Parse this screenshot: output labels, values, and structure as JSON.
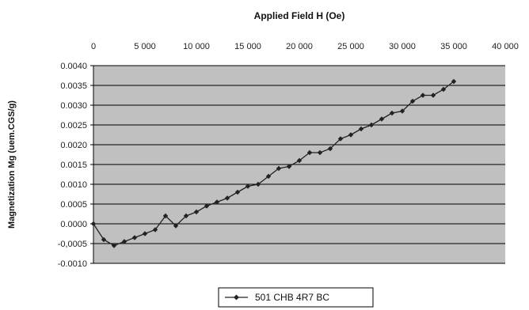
{
  "chart_data": {
    "type": "line",
    "xlabel": "Applied Field H (Oe)",
    "ylabel": "Magnetization Mg (uem.CGS/g)",
    "xlim": [
      0,
      40000
    ],
    "ylim": [
      -0.001,
      0.004
    ],
    "x_ticks": [
      0,
      5000,
      10000,
      15000,
      20000,
      25000,
      30000,
      35000,
      40000
    ],
    "x_tick_labels": [
      "0",
      "5 000",
      "10 000",
      "15 000",
      "20 000",
      "25 000",
      "30 000",
      "35 000",
      "40 000"
    ],
    "y_ticks": [
      -0.001,
      -0.0005,
      0,
      0.0005,
      0.001,
      0.0015,
      0.002,
      0.0025,
      0.003,
      0.0035,
      0.004
    ],
    "y_tick_labels": [
      "-0.0010",
      "-0,0005",
      "0.0000",
      "0.0005",
      "0.0010",
      "0.0015",
      "0.0020",
      "0.0025",
      "0.0030",
      "0.0035",
      "0.0040"
    ],
    "x_axis_position": "top",
    "grid": true,
    "legend_position": "bottom-center",
    "colors": {
      "plot_bg": "#c0c0c0",
      "grid": "#000000",
      "series": "#222222"
    },
    "series": [
      {
        "name": "501 CHB 4R7 BC",
        "x": [
          0,
          1000,
          2000,
          3000,
          4000,
          5000,
          6000,
          7000,
          8000,
          9000,
          10000,
          11000,
          12000,
          13000,
          14000,
          15000,
          16000,
          17000,
          18000,
          19000,
          20000,
          21000,
          22000,
          23000,
          24000,
          25000,
          26000,
          27000,
          28000,
          29000,
          30000,
          31000,
          32000,
          33000,
          34000,
          35000
        ],
        "y": [
          0.0,
          -0.0004,
          -0.00055,
          -0.00045,
          -0.00035,
          -0.00025,
          -0.00015,
          0.0002,
          -5e-05,
          0.0002,
          0.0003,
          0.00045,
          0.00055,
          0.00065,
          0.0008,
          0.00095,
          0.001,
          0.0012,
          0.0014,
          0.00145,
          0.0016,
          0.0018,
          0.0018,
          0.0019,
          0.00215,
          0.00225,
          0.0024,
          0.0025,
          0.00265,
          0.0028,
          0.00285,
          0.0031,
          0.00325,
          0.00325,
          0.0034,
          0.0036
        ]
      }
    ]
  }
}
